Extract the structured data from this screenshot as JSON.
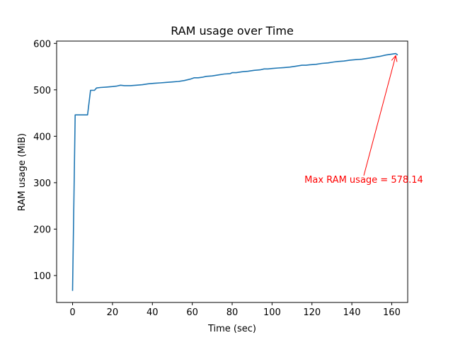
{
  "chart_data": {
    "type": "line",
    "title": "RAM usage over Time",
    "xlabel": "Time (sec)",
    "ylabel": "RAM usage (MiB)",
    "xlim": [
      -8,
      168
    ],
    "ylim": [
      42,
      605
    ],
    "xticks": [
      0,
      20,
      40,
      60,
      80,
      100,
      120,
      140,
      160
    ],
    "yticks": [
      100,
      200,
      300,
      400,
      500,
      600
    ],
    "grid": false,
    "series": [
      {
        "color": "#1f77b4",
        "x": [
          0,
          1.3,
          3,
          5,
          7.5,
          9,
          11,
          12,
          14,
          17,
          20,
          22,
          24,
          26,
          29,
          32,
          35,
          38,
          41,
          44,
          47,
          50,
          53,
          56,
          59,
          61,
          63,
          65,
          67,
          70,
          73,
          76,
          79,
          80,
          82,
          85,
          88,
          91,
          94,
          96,
          98,
          100,
          103,
          106,
          109,
          112,
          115,
          117,
          119,
          122,
          125,
          128,
          131,
          133,
          136,
          139,
          142,
          145,
          148,
          151,
          154,
          157,
          160,
          162,
          163
        ],
        "y": [
          67,
          446,
          446,
          446,
          446,
          499,
          499,
          504,
          505,
          506,
          507,
          508,
          510,
          509,
          509,
          510,
          511,
          513,
          514,
          515,
          516,
          517,
          518,
          520,
          523,
          526,
          526,
          527,
          529,
          530,
          532,
          534,
          535,
          537,
          537,
          539,
          540,
          542,
          543,
          545,
          545,
          546,
          547,
          548,
          549,
          551,
          553,
          553,
          554,
          555,
          557,
          558,
          560,
          561,
          562,
          564,
          565,
          566,
          568,
          570,
          572,
          575,
          577,
          578.14,
          575
        ]
      }
    ],
    "annotation": {
      "text": "Max RAM usage = 578.14",
      "color": "#ff0000",
      "point": [
        162,
        578.14
      ],
      "text_anchor": [
        146,
        300
      ]
    }
  }
}
